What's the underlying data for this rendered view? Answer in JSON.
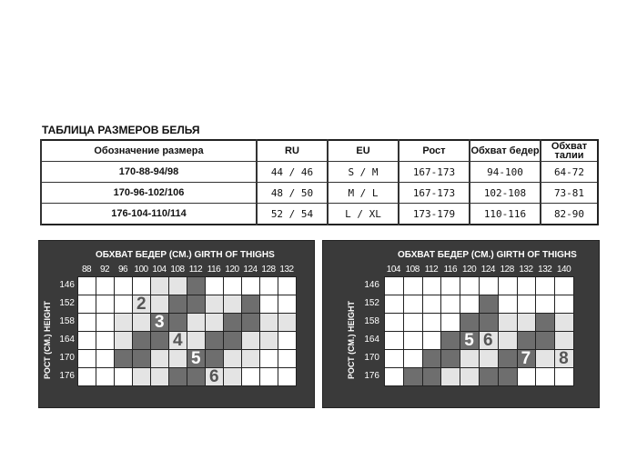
{
  "title": "ТАБЛИЦА РАЗМЕРОВ БЕЛЬЯ",
  "table": {
    "headers": [
      "Обозначение размера",
      "RU",
      "EU",
      "Рост",
      "Обхват бедер",
      "Обхват талии"
    ],
    "rows": [
      [
        "170-88-94/98",
        "44 / 46",
        "S / M",
        "167-173",
        "94-100",
        "64-72"
      ],
      [
        "170-96-102/106",
        "48 / 50",
        "M / L",
        "167-173",
        "102-108",
        "73-81"
      ],
      [
        "176-104-110/114",
        "52 / 54",
        "L / XL",
        "173-179",
        "110-116",
        "82-90"
      ]
    ]
  },
  "charts": [
    {
      "x_title": "ОБХВАТ БЕДЕР (СМ.) GIRTH OF THIGHS",
      "y_title": "РОСТ (СМ.) HEIGHT",
      "columns": [
        "88",
        "92",
        "96",
        "100",
        "104",
        "108",
        "112",
        "116",
        "120",
        "124",
        "128",
        "132"
      ],
      "rows": [
        "146",
        "152",
        "158",
        "164",
        "170",
        "176"
      ],
      "cells": [
        "WWWWLLDWWWWW",
        "WWWLLDDLLDWW",
        "WWLLDDLLDDLL",
        "WWLDDLLDDLLW",
        "WWDDLLDDLLWW",
        "WWWLLDDLLWWW"
      ],
      "size_labels": [
        {
          "text": "2",
          "row": 1,
          "col": 3
        },
        {
          "text": "3",
          "row": 2,
          "col": 4
        },
        {
          "text": "4",
          "row": 3,
          "col": 5
        },
        {
          "text": "5",
          "row": 4,
          "col": 6
        },
        {
          "text": "6",
          "row": 5,
          "col": 7
        }
      ]
    },
    {
      "x_title": "ОБХВАТ БЕДЕР (СМ.) GIRTH OF THIGHS",
      "y_title": "РОСТ (СМ.) HEIGHT",
      "columns": [
        "104",
        "108",
        "112",
        "116",
        "120",
        "124",
        "128",
        "132",
        "132",
        "140"
      ],
      "rows": [
        "146",
        "152",
        "158",
        "164",
        "170",
        "176"
      ],
      "cells": [
        "WWWWWWWWWW",
        "WWWWWDWWWW",
        "WWWWDDLLDL",
        "WWWDDLLDDL",
        "WWDDLLDDLL",
        "WDDLLDDWWW"
      ],
      "size_labels": [
        {
          "text": "5",
          "row": 3,
          "col": 4
        },
        {
          "text": "6",
          "row": 3,
          "col": 5
        },
        {
          "text": "7",
          "row": 4,
          "col": 7
        },
        {
          "text": "8",
          "row": 4,
          "col": 9
        }
      ]
    }
  ],
  "colors": {
    "W": "#ffffff",
    "L": "#e4e4e4",
    "D": "#6e6e6e",
    "panel": "#3a3a3a"
  }
}
